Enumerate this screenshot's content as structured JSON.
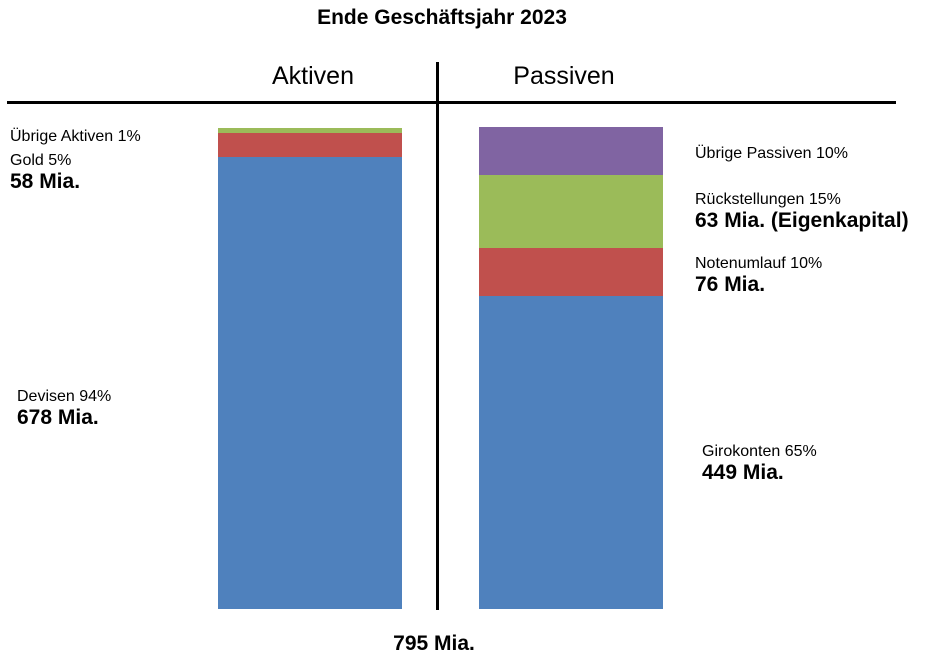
{
  "chart_data": {
    "type": "bar",
    "stacked": true,
    "title": "Ende Geschäftsjahr 2023",
    "total_label": "795 Mia.",
    "colors": {
      "devisen": "#4f81bd",
      "gold": "#c0504d",
      "uebrige_aktiven": "#9bbb59",
      "girokonten": "#4f81bd",
      "notenumlauf": "#c0504d",
      "rueckstellungen": "#9bbb59",
      "uebrige_passiven": "#8064a2"
    },
    "columns": [
      {
        "name": "Aktiven",
        "segments": [
          {
            "key": "devisen",
            "label": "Devisen 94%",
            "share": 94,
            "amount": "678 Mia."
          },
          {
            "key": "gold",
            "label": "Gold 5%",
            "share": 5,
            "amount": ""
          },
          {
            "key": "uebrige_aktiven",
            "label": "Übrige Aktiven 1%",
            "share": 1,
            "amount": ""
          }
        ],
        "group_amount": "58 Mia."
      },
      {
        "name": "Passiven",
        "segments": [
          {
            "key": "girokonten",
            "label": "Girokonten  65%",
            "share": 65,
            "amount": "449 Mia."
          },
          {
            "key": "notenumlauf",
            "label": "Notenumlauf 10%",
            "share": 10,
            "amount": "76 Mia."
          },
          {
            "key": "rueckstellungen",
            "label": "Rückstellungen 15%",
            "share": 15,
            "amount": "63 Mia. (Eigenkapital)"
          },
          {
            "key": "uebrige_passiven",
            "label": "Übrige Passiven 10%",
            "share": 10,
            "amount": ""
          }
        ]
      }
    ]
  }
}
